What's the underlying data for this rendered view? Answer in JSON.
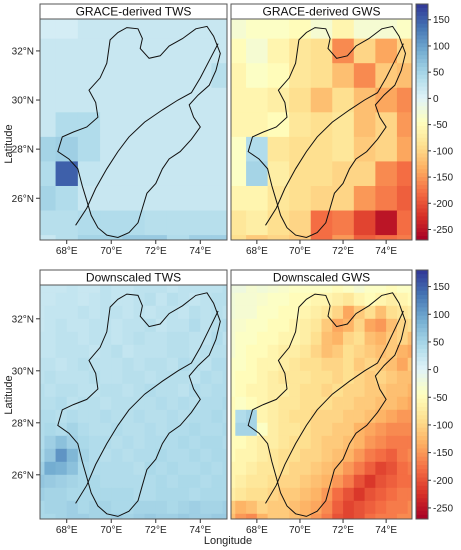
{
  "chart_data": {
    "type": "heatmap",
    "xlabel": "Longitude",
    "ylabel": "Latitude",
    "x_tick_labels": [
      "68°E",
      "70°E",
      "72°E",
      "74°E"
    ],
    "y_tick_labels": [
      "32°N",
      "30°N",
      "28°N",
      "26°N"
    ],
    "x_ticks": [
      68,
      70,
      72,
      74
    ],
    "y_ticks": [
      32,
      30,
      28,
      26
    ],
    "xlim": [
      66.8,
      75.2
    ],
    "ylim": [
      24.3,
      33.3
    ],
    "colorbar": {
      "ticks": [
        150,
        100,
        50,
        0,
        -50,
        -100,
        -150,
        -200,
        -250
      ],
      "tick_labels": [
        "150",
        "100",
        "50",
        "0",
        "-50",
        "-100",
        "-150",
        "-200",
        "-250"
      ],
      "range": [
        -270,
        180
      ],
      "colors": [
        "#a50026",
        "#d73027",
        "#f46d43",
        "#fdae61",
        "#fee090",
        "#ffffbf",
        "#e0f3f8",
        "#abd9e9",
        "#74add1",
        "#4575b4",
        "#313695"
      ]
    },
    "panels": [
      {
        "title": "GRACE-derived TWS",
        "resolution": 1,
        "grid": [
          [
            10,
            10,
            20,
            20,
            20,
            20,
            20,
            20,
            20
          ],
          [
            20,
            20,
            20,
            20,
            20,
            20,
            20,
            20,
            20
          ],
          [
            20,
            20,
            20,
            20,
            20,
            20,
            20,
            20,
            35
          ],
          [
            20,
            20,
            20,
            20,
            20,
            20,
            20,
            20,
            20
          ],
          [
            20,
            40,
            40,
            20,
            20,
            20,
            20,
            20,
            20
          ],
          [
            50,
            55,
            40,
            20,
            20,
            20,
            20,
            20,
            20
          ],
          [
            40,
            150,
            25,
            20,
            20,
            20,
            20,
            20,
            20
          ],
          [
            50,
            40,
            20,
            20,
            20,
            20,
            20,
            20,
            20
          ],
          [
            35,
            35,
            40,
            40,
            40,
            35,
            35,
            35,
            35
          ],
          [
            20,
            35,
            50,
            50,
            60,
            60,
            40,
            55,
            55
          ]
        ]
      },
      {
        "title": "GRACE-derived GWS",
        "resolution": 1,
        "grid": [
          [
            -30,
            -40,
            -40,
            -50,
            -30,
            -60,
            -30,
            -30,
            -40
          ],
          [
            -50,
            -30,
            -60,
            -80,
            -90,
            -160,
            -100,
            -140,
            -100
          ],
          [
            -60,
            -40,
            -50,
            -80,
            -90,
            -120,
            -160,
            -110,
            -120
          ],
          [
            -60,
            -60,
            -70,
            -90,
            -120,
            -90,
            -120,
            -140,
            -160
          ],
          [
            -60,
            -60,
            -50,
            -80,
            -90,
            -80,
            -120,
            -100,
            -150
          ],
          [
            -40,
            40,
            -80,
            -90,
            -90,
            -80,
            -110,
            -100,
            -140
          ],
          [
            -40,
            50,
            -70,
            -90,
            -90,
            -100,
            -100,
            -160,
            -180
          ],
          [
            -60,
            -60,
            -80,
            -90,
            -100,
            -100,
            -150,
            -170,
            -190
          ],
          [
            -80,
            -70,
            -90,
            -100,
            -180,
            -170,
            -210,
            -250,
            -180
          ],
          [
            -90,
            -110,
            -100,
            -110,
            -180,
            -150,
            -190,
            -180,
            -170
          ]
        ]
      },
      {
        "title": "Downscaled TWS",
        "resolution": 0.5,
        "grid": [
          [
            20,
            20,
            20,
            25,
            20,
            20,
            30,
            25,
            25,
            30,
            30,
            30,
            25,
            30,
            30,
            30,
            30,
            35
          ],
          [
            20,
            20,
            25,
            25,
            20,
            25,
            30,
            25,
            25,
            30,
            35,
            25,
            35,
            30,
            25,
            30,
            35,
            35
          ],
          [
            20,
            25,
            25,
            25,
            30,
            25,
            30,
            30,
            25,
            30,
            25,
            30,
            30,
            25,
            35,
            30,
            35,
            30
          ],
          [
            20,
            25,
            30,
            25,
            25,
            30,
            30,
            25,
            30,
            30,
            35,
            25,
            30,
            30,
            40,
            30,
            35,
            40
          ],
          [
            25,
            25,
            30,
            30,
            25,
            30,
            30,
            25,
            30,
            35,
            30,
            30,
            35,
            35,
            30,
            30,
            40,
            30
          ],
          [
            25,
            25,
            30,
            30,
            30,
            25,
            30,
            35,
            25,
            30,
            30,
            30,
            35,
            35,
            30,
            35,
            35,
            35
          ],
          [
            30,
            30,
            25,
            30,
            35,
            30,
            30,
            30,
            35,
            30,
            35,
            35,
            30,
            40,
            35,
            30,
            40,
            40
          ],
          [
            30,
            35,
            30,
            30,
            30,
            35,
            30,
            30,
            35,
            35,
            30,
            35,
            35,
            35,
            30,
            40,
            35,
            40
          ],
          [
            35,
            30,
            35,
            35,
            30,
            30,
            35,
            35,
            30,
            35,
            40,
            35,
            35,
            30,
            40,
            35,
            40,
            40
          ],
          [
            35,
            35,
            40,
            30,
            35,
            35,
            30,
            35,
            35,
            35,
            35,
            40,
            35,
            40,
            35,
            40,
            40,
            45
          ],
          [
            40,
            40,
            35,
            40,
            35,
            35,
            40,
            35,
            35,
            40,
            35,
            35,
            40,
            35,
            40,
            40,
            45,
            40
          ],
          [
            40,
            45,
            40,
            50,
            40,
            35,
            35,
            40,
            35,
            35,
            40,
            35,
            40,
            40,
            45,
            40,
            40,
            45
          ],
          [
            40,
            55,
            70,
            55,
            45,
            40,
            40,
            35,
            40,
            35,
            40,
            40,
            40,
            45,
            40,
            45,
            45,
            40
          ],
          [
            45,
            65,
            110,
            80,
            50,
            40,
            35,
            40,
            35,
            40,
            40,
            45,
            40,
            40,
            45,
            40,
            45,
            45
          ],
          [
            55,
            90,
            85,
            70,
            45,
            40,
            40,
            40,
            40,
            35,
            45,
            40,
            45,
            40,
            40,
            45,
            40,
            45
          ],
          [
            65,
            60,
            55,
            50,
            45,
            45,
            40,
            40,
            40,
            40,
            40,
            45,
            40,
            45,
            45,
            40,
            45,
            45
          ],
          [
            55,
            50,
            50,
            45,
            45,
            45,
            45,
            45,
            45,
            40,
            40,
            45,
            45,
            45,
            40,
            45,
            45,
            45
          ],
          [
            45,
            50,
            50,
            55,
            45,
            50,
            50,
            45,
            45,
            50,
            50,
            50,
            45,
            50,
            55,
            50,
            50,
            55
          ],
          [
            45,
            45,
            50,
            55,
            55,
            50,
            50,
            55,
            50,
            55,
            60,
            55,
            55,
            60,
            55,
            55,
            60,
            60
          ],
          [
            20,
            40,
            50,
            60,
            55,
            50,
            55,
            60,
            55,
            60,
            55,
            60,
            65,
            60,
            70,
            65,
            60,
            60
          ]
        ]
      },
      {
        "title": "Downscaled GWS",
        "resolution": 0.5,
        "grid": [
          [
            -20,
            -20,
            -30,
            -25,
            -30,
            -35,
            -40,
            -40,
            -40,
            -40,
            -50,
            -40,
            -30,
            -40,
            -40,
            -50,
            -40,
            -40
          ],
          [
            -25,
            -30,
            -30,
            -35,
            -40,
            -40,
            -50,
            -50,
            -60,
            -60,
            -70,
            -80,
            -60,
            -50,
            -60,
            -70,
            -60,
            -50
          ],
          [
            -25,
            -30,
            -30,
            -40,
            -40,
            -50,
            -50,
            -60,
            -70,
            -80,
            -100,
            -140,
            -110,
            -90,
            -120,
            -90,
            -80,
            -70
          ],
          [
            -30,
            -35,
            -40,
            -40,
            -50,
            -50,
            -60,
            -70,
            -80,
            -110,
            -140,
            -130,
            -100,
            -140,
            -150,
            -120,
            -100,
            -90
          ],
          [
            -30,
            -40,
            -40,
            -50,
            -50,
            -60,
            -60,
            -70,
            -90,
            -120,
            -130,
            -100,
            -90,
            -120,
            -130,
            -110,
            -100,
            -120
          ],
          [
            -30,
            -40,
            -50,
            -50,
            -60,
            -70,
            -70,
            -80,
            -100,
            -120,
            -110,
            -90,
            -100,
            -110,
            -120,
            -110,
            -130,
            -140
          ],
          [
            -40,
            -40,
            -50,
            -60,
            -60,
            -70,
            -80,
            -90,
            -90,
            -100,
            -100,
            -90,
            -110,
            -100,
            -110,
            -120,
            -140,
            -110
          ],
          [
            -40,
            -50,
            -50,
            -60,
            -70,
            -80,
            -80,
            -80,
            -90,
            -90,
            -100,
            -90,
            -100,
            -110,
            -100,
            -110,
            -120,
            -120
          ],
          [
            -40,
            -50,
            -60,
            -60,
            -70,
            -70,
            -80,
            -90,
            -90,
            -100,
            -90,
            -100,
            -100,
            -110,
            -110,
            -120,
            -120,
            -130
          ],
          [
            -50,
            -40,
            -50,
            -60,
            -70,
            -80,
            -80,
            -90,
            -90,
            -90,
            -100,
            -100,
            -110,
            -110,
            -120,
            -120,
            -130,
            -140
          ],
          [
            -50,
            40,
            50,
            -60,
            -70,
            -80,
            -90,
            -90,
            -100,
            -100,
            -100,
            -110,
            -110,
            -120,
            -130,
            -140,
            -150,
            -150
          ],
          [
            -50,
            50,
            50,
            -40,
            -70,
            -80,
            -80,
            -90,
            -100,
            -100,
            -110,
            -110,
            -130,
            -140,
            -150,
            -160,
            -160,
            -160
          ],
          [
            -50,
            -50,
            -60,
            -70,
            -70,
            -80,
            -90,
            -90,
            -100,
            -110,
            -110,
            -120,
            -130,
            -150,
            -160,
            -170,
            -170,
            -170
          ],
          [
            -50,
            -60,
            -60,
            -70,
            -80,
            -90,
            -90,
            -100,
            -100,
            -110,
            -120,
            -130,
            -150,
            -170,
            -180,
            -190,
            -170,
            -160
          ],
          [
            -60,
            -60,
            -70,
            -80,
            -80,
            -90,
            -100,
            -100,
            -110,
            -120,
            -130,
            -150,
            -170,
            -190,
            -210,
            -200,
            -180,
            -170
          ],
          [
            -60,
            -70,
            -80,
            -80,
            -90,
            -100,
            -100,
            -110,
            -120,
            -130,
            -150,
            -170,
            -200,
            -220,
            -200,
            -190,
            -180,
            -180
          ],
          [
            -70,
            -80,
            -90,
            -90,
            -100,
            -110,
            -110,
            -120,
            -130,
            -150,
            -180,
            -200,
            -220,
            -200,
            -190,
            -180,
            -170,
            -170
          ],
          [
            -110,
            -130,
            -120,
            -100,
            -110,
            -110,
            -120,
            -130,
            -140,
            -160,
            -190,
            -210,
            -200,
            -190,
            -180,
            -170,
            -170,
            -160
          ],
          [
            -120,
            -150,
            -160,
            -130,
            -110,
            -110,
            -120,
            -130,
            -150,
            -170,
            -200,
            -210,
            -200,
            -180,
            -170,
            -170,
            -160,
            -160
          ],
          [
            -80,
            -100,
            -110,
            -100,
            -100,
            -110,
            -120,
            -130,
            -160,
            -180,
            -190,
            -190,
            -180,
            -170,
            -160,
            -170,
            -160,
            -160
          ]
        ]
      }
    ]
  }
}
